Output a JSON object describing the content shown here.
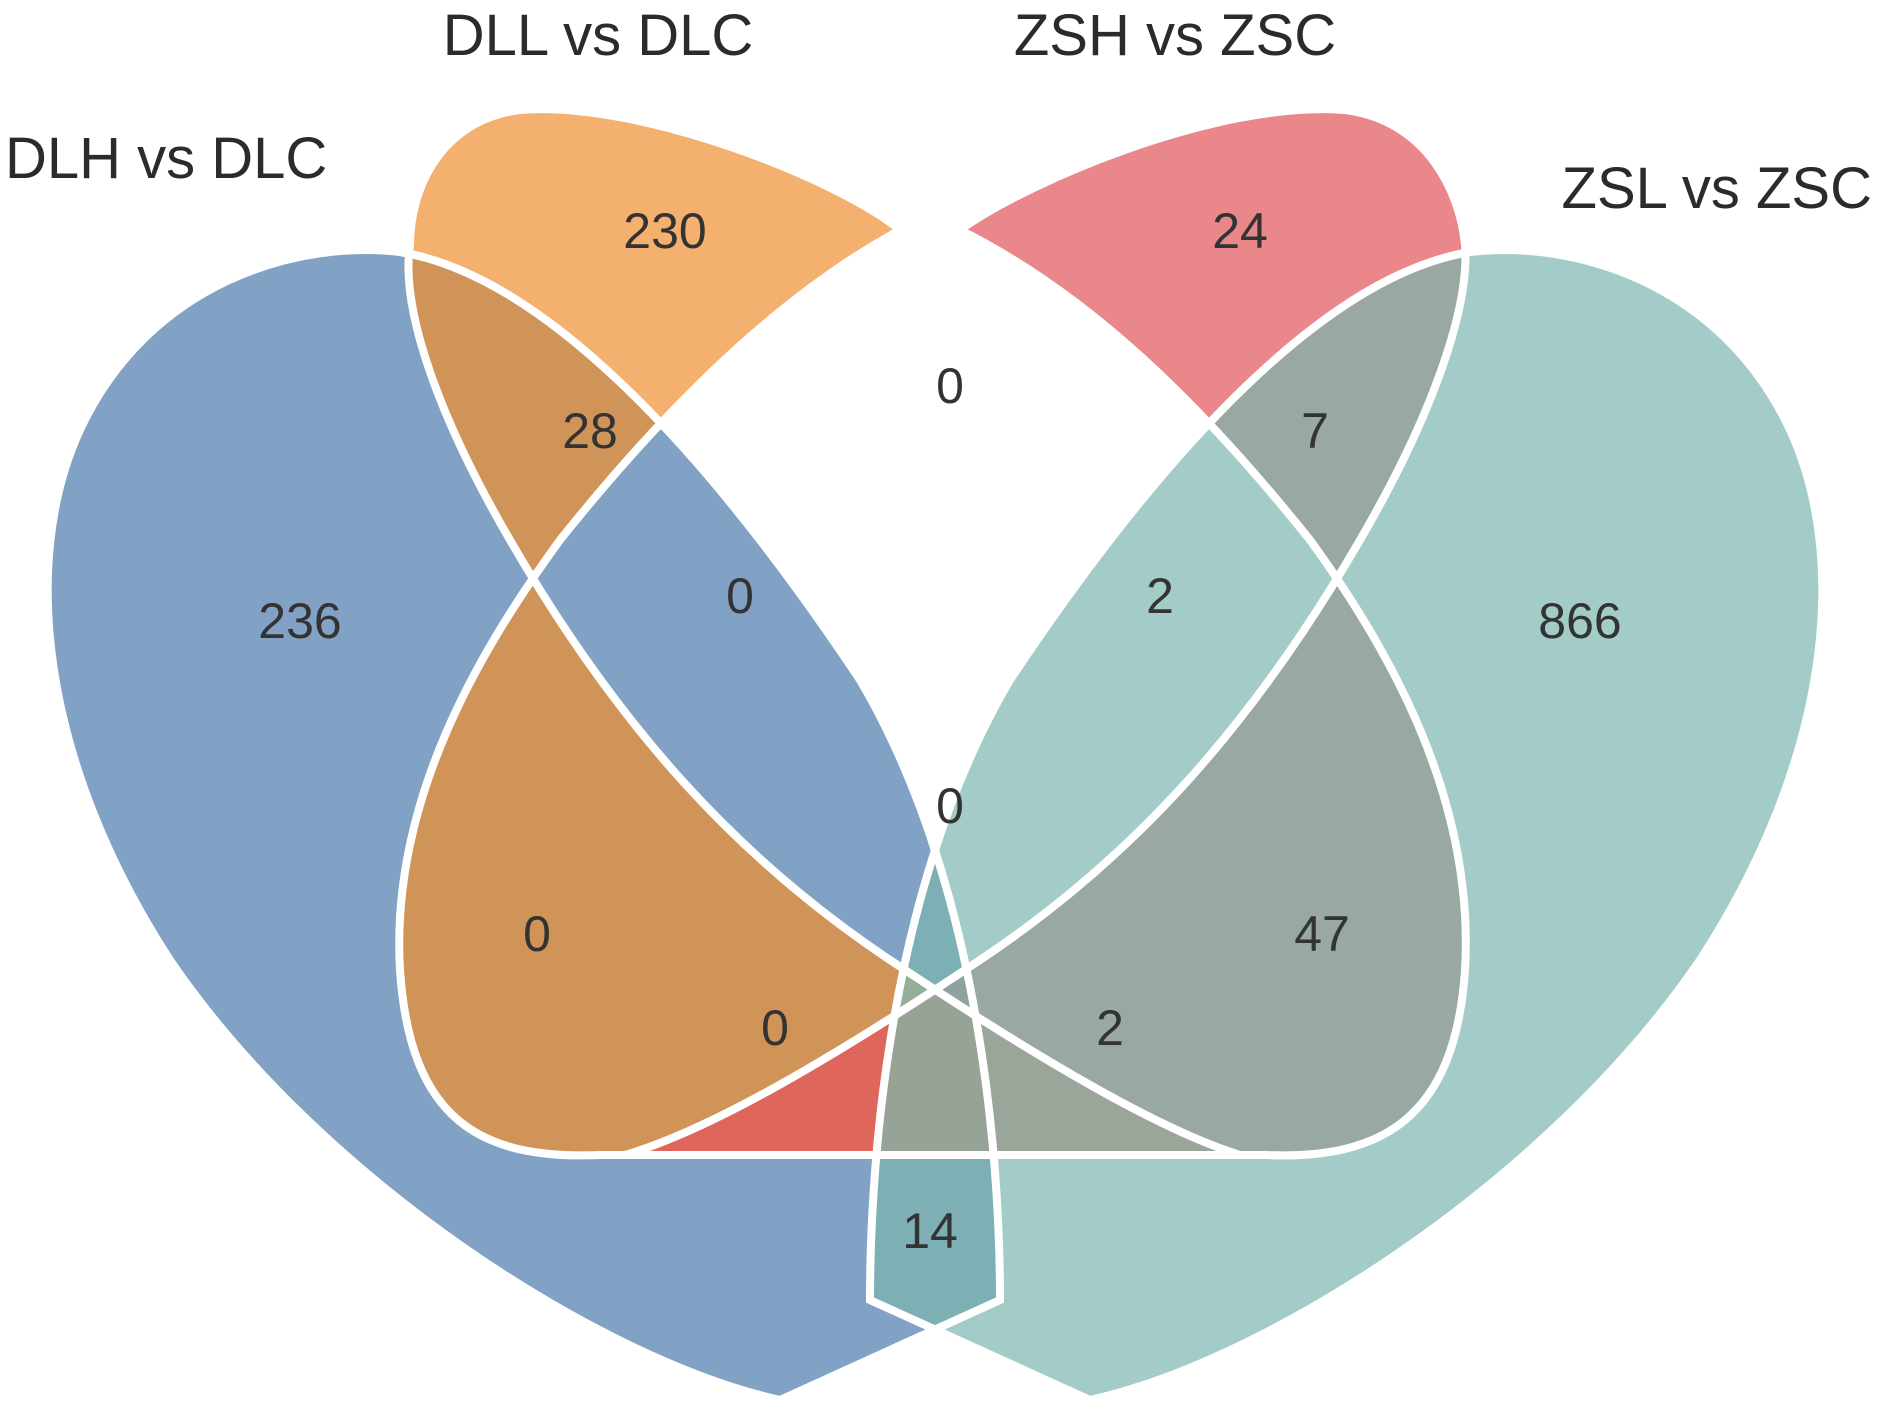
{
  "diagram": {
    "type": "venn-4",
    "sets": [
      {
        "id": "A",
        "label": "DLH vs DLC",
        "color": "#82a2c5"
      },
      {
        "id": "B",
        "label": "DLL vs DLC",
        "color": "#f4b06e"
      },
      {
        "id": "C",
        "label": "ZSH vs ZSC",
        "color": "#e9878b"
      },
      {
        "id": "D",
        "label": "ZSL vs ZSC",
        "color": "#a3ccc9"
      }
    ],
    "regions": [
      {
        "sets": [
          "A"
        ],
        "count": "236",
        "color": "#82a2c5"
      },
      {
        "sets": [
          "B"
        ],
        "count": "230",
        "color": "#f4b06e"
      },
      {
        "sets": [
          "C"
        ],
        "count": "24",
        "color": "#e9878b"
      },
      {
        "sets": [
          "D"
        ],
        "count": "866",
        "color": "#a3ccc9"
      },
      {
        "sets": [
          "A",
          "B"
        ],
        "count": "28",
        "color": "#d19458"
      },
      {
        "sets": [
          "B",
          "C"
        ],
        "count": "0",
        "color": "#e8705f"
      },
      {
        "sets": [
          "C",
          "D"
        ],
        "count": "7",
        "color": "#99a8a3"
      },
      {
        "sets": [
          "A",
          "C"
        ],
        "count": "0",
        "color": "#c46b79"
      },
      {
        "sets": [
          "B",
          "D"
        ],
        "count": "47",
        "color": "#9fb69b"
      },
      {
        "sets": [
          "A",
          "D"
        ],
        "count": "14",
        "color": "#7cb0b5"
      },
      {
        "sets": [
          "A",
          "B",
          "C"
        ],
        "count": "0",
        "color": "#de665a"
      },
      {
        "sets": [
          "B",
          "C",
          "D"
        ],
        "count": "2",
        "color": "#9aa69a"
      },
      {
        "sets": [
          "A",
          "C",
          "D"
        ],
        "count": "0",
        "color": "#8fa29f"
      },
      {
        "sets": [
          "A",
          "B",
          "D"
        ],
        "count": "2",
        "color": "#95ae97"
      },
      {
        "sets": [
          "A",
          "B",
          "C",
          "D"
        ],
        "count": "0",
        "color": "#98a398"
      }
    ]
  }
}
